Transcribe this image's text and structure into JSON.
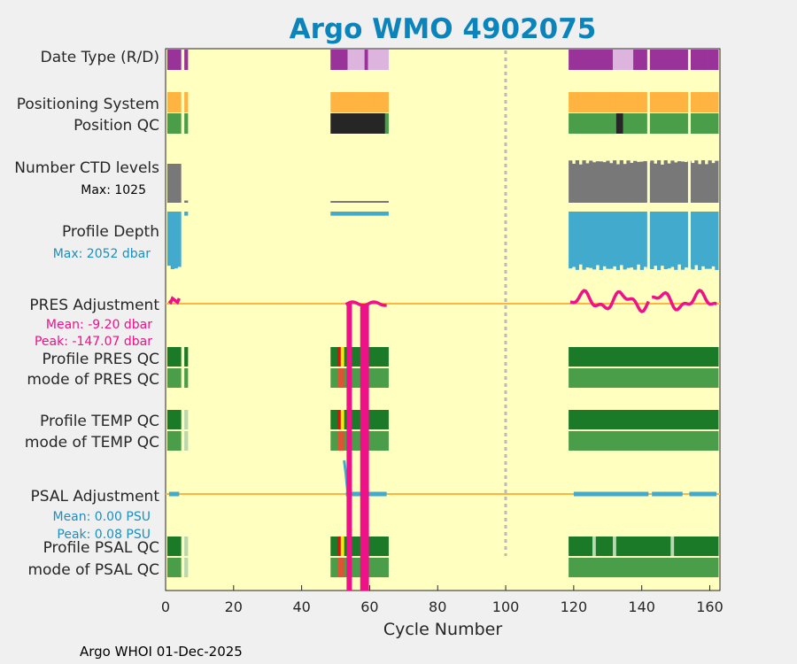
{
  "chart_data": {
    "type": "table",
    "title": "Argo WMO 4902075",
    "xlabel": "Cycle Number",
    "xlim": [
      0,
      163
    ],
    "x_ticks": [
      0,
      20,
      40,
      60,
      80,
      100,
      120,
      140,
      160
    ],
    "footer": "Argo WHOI 01-Dec-2025",
    "reference_cycle": 100,
    "row_labels": {
      "date_type": "Date Type (R/D)",
      "positioning_system": "Positioning System",
      "position_qc": "Position QC",
      "n_ctd_levels": "Number CTD levels",
      "profile_depth": "Profile Depth",
      "pres_adjustment": "PRES Adjustment",
      "profile_pres_qc": "Profile PRES QC",
      "mode_pres_qc": "mode of PRES QC",
      "profile_temp_qc": "Profile TEMP QC",
      "mode_temp_qc": "mode of TEMP QC",
      "psal_adjustment": "PSAL Adjustment",
      "profile_psal_qc": "Profile PSAL QC",
      "mode_psal_qc": "mode of PSAL QC"
    },
    "stats": {
      "ctd_max": "Max: 1025",
      "depth_max": "Max: 2052 dbar",
      "pres_mean": "Mean: -9.20 dbar",
      "pres_peak": "Peak: -147.07 dbar",
      "psal_mean": "Mean: 0.00 PSU",
      "psal_peak": "Peak: 0.08 PSU"
    },
    "cycle_ranges": [
      [
        1,
        4
      ],
      [
        6,
        6
      ],
      [
        49,
        65
      ],
      [
        119,
        162
      ]
    ],
    "date_type_delayed_cycles": [
      [
        54,
        58
      ],
      [
        60,
        65
      ],
      [
        132,
        137
      ]
    ],
    "position_qc_bad_cycles": [
      [
        49,
        64
      ],
      [
        133,
        134
      ]
    ],
    "profile_qc_flag_cycles": [
      51,
      52
    ],
    "psal_qc_light_cycles": [
      6,
      126,
      132,
      149
    ],
    "ctd_levels_max": 1025,
    "profile_depth_max_dbar": 2052,
    "pres_adjustment_outlier_cycles": [
      54,
      58,
      59
    ],
    "colors": {
      "plot_bg": "#ffffc0",
      "realtime": "#993399",
      "delayed": "#ddb4dd",
      "positioning": "#ffb340",
      "qc_good": "#1a7a28",
      "qc_mode_good": "#4a9e4a",
      "qc_bad": "#262626",
      "qc_warn": "#ffee00",
      "qc_fail": "#dd1111",
      "qc_mode_warn": "#dd5533",
      "qc_light": "#b8d8b0",
      "ctd": "#787878",
      "depth": "#42aacc",
      "adjustment": "#ee1188",
      "zero_line": "#ffb340",
      "title": "#0a84bb",
      "pres_stats": "#ee1188",
      "psal_stats": "#1a8fc0"
    }
  }
}
